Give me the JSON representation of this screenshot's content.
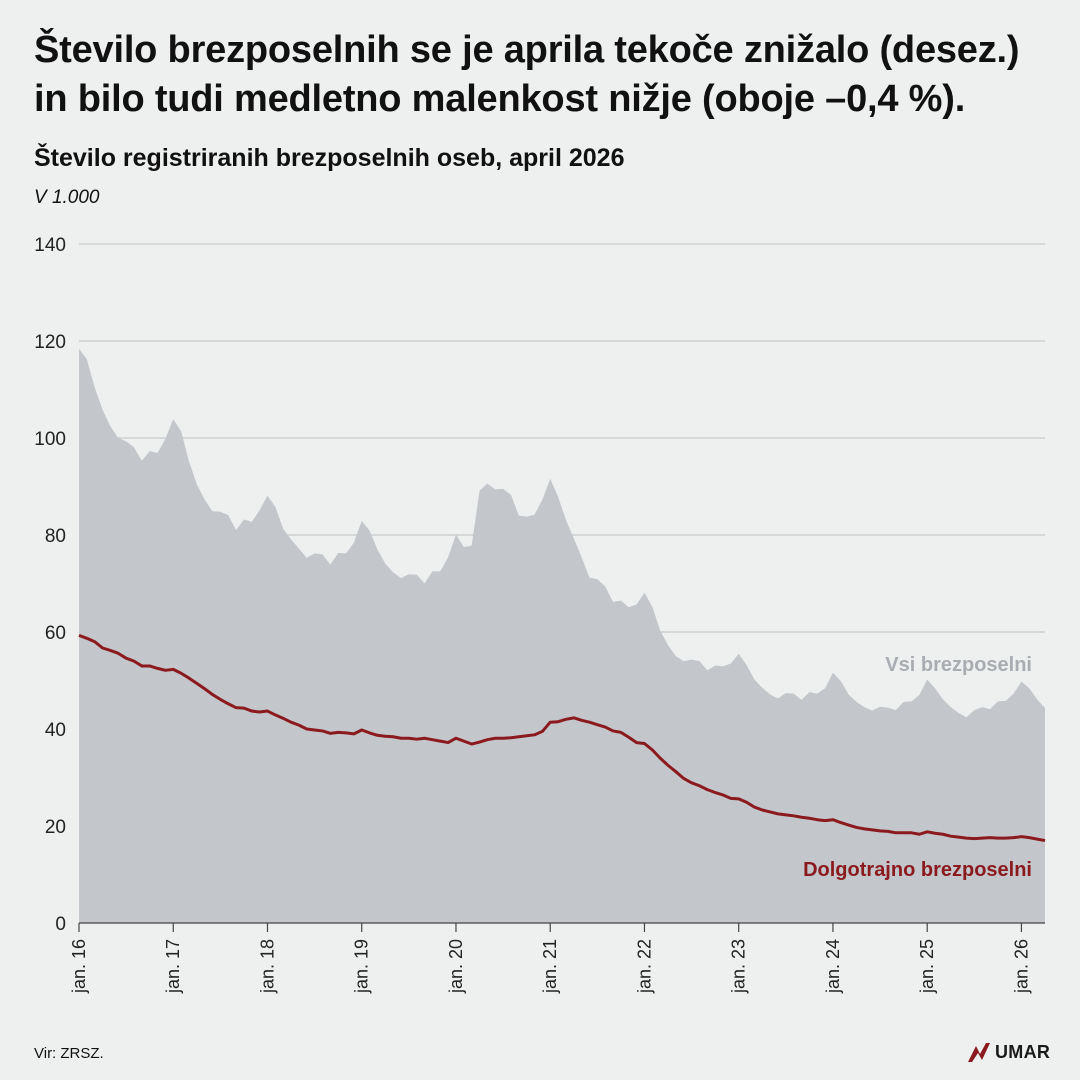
{
  "headline": {
    "line1": "Število brezposelnih se je aprila tekoče znižalo (desez.)",
    "line2": "in bilo tudi medletno malenkost nižje (oboje –0,4 %)."
  },
  "chart_data": {
    "type": "area",
    "title": "Število registriranih brezposelnih oseb, april 2026",
    "unit_label": "V 1.000",
    "ylim": [
      0,
      140
    ],
    "y_ticks": [
      0,
      20,
      40,
      60,
      80,
      100,
      120,
      140
    ],
    "x_tick_labels": [
      "jan. 16",
      "jan. 17",
      "jan. 18",
      "jan. 19",
      "jan. 20",
      "jan. 21",
      "jan. 22",
      "jan. 23",
      "jan. 24",
      "jan. 25",
      "jan. 26"
    ],
    "x_start": "2016-01",
    "x_end": "2026-04",
    "grid": true,
    "series": [
      {
        "name": "Vsi brezposelni",
        "kind": "area",
        "color": "#c3c6ca",
        "label_color": "#a9adb2",
        "values": [
          118.4,
          116.2,
          110.4,
          105.8,
          102.4,
          100.0,
          99.3,
          98.1,
          95.3,
          97.3,
          96.9,
          99.8,
          103.9,
          101.4,
          95.2,
          90.5,
          87.3,
          84.9,
          84.8,
          84.1,
          81.0,
          83.2,
          82.7,
          85.1,
          88.1,
          85.8,
          81.3,
          79.1,
          77.2,
          75.3,
          76.2,
          76.0,
          73.9,
          76.3,
          76.2,
          78.4,
          82.9,
          80.9,
          77.0,
          74.1,
          72.3,
          71.1,
          71.9,
          71.8,
          70.0,
          72.5,
          72.5,
          75.4,
          80.1,
          77.5,
          77.8,
          89.1,
          90.6,
          89.4,
          89.5,
          88.3,
          84.0,
          83.8,
          84.2,
          87.3,
          91.6,
          87.9,
          83.1,
          79.3,
          75.4,
          71.2,
          70.9,
          69.4,
          66.2,
          66.5,
          65.1,
          65.7,
          68.1,
          65.2,
          60.3,
          57.3,
          55.0,
          54.0,
          54.3,
          54.0,
          52.1,
          53.1,
          52.9,
          53.5,
          55.5,
          53.2,
          50.2,
          48.5,
          47.1,
          46.3,
          47.4,
          47.3,
          46.0,
          47.6,
          47.3,
          48.4,
          51.6,
          49.9,
          47.1,
          45.6,
          44.5,
          43.8,
          44.6,
          44.4,
          43.9,
          45.6,
          45.7,
          47.0,
          50.2,
          48.4,
          46.1,
          44.5,
          43.3,
          42.4,
          43.9,
          44.5,
          44.1,
          45.7,
          45.8,
          47.3,
          49.8,
          48.4,
          46.1,
          44.3
        ]
      },
      {
        "name": "Dolgotrajno brezposelni",
        "kind": "line",
        "color": "#8b1a1f",
        "values": [
          59.3,
          58.7,
          58.0,
          56.7,
          56.2,
          55.6,
          54.6,
          54.0,
          53.0,
          53.0,
          52.5,
          52.1,
          52.3,
          51.5,
          50.5,
          49.4,
          48.3,
          47.1,
          46.1,
          45.2,
          44.4,
          44.3,
          43.7,
          43.5,
          43.7,
          42.9,
          42.2,
          41.4,
          40.8,
          40.0,
          39.8,
          39.6,
          39.1,
          39.3,
          39.2,
          39.0,
          39.8,
          39.2,
          38.7,
          38.5,
          38.4,
          38.1,
          38.1,
          37.9,
          38.1,
          37.8,
          37.5,
          37.2,
          38.1,
          37.5,
          36.9,
          37.3,
          37.8,
          38.1,
          38.1,
          38.2,
          38.4,
          38.6,
          38.8,
          39.5,
          41.4,
          41.5,
          42.0,
          42.3,
          41.8,
          41.4,
          40.9,
          40.4,
          39.6,
          39.3,
          38.3,
          37.2,
          37.0,
          35.7,
          34.0,
          32.5,
          31.2,
          29.8,
          28.9,
          28.3,
          27.5,
          26.9,
          26.4,
          25.7,
          25.6,
          24.9,
          23.9,
          23.3,
          22.9,
          22.5,
          22.3,
          22.1,
          21.8,
          21.6,
          21.3,
          21.1,
          21.3,
          20.7,
          20.2,
          19.7,
          19.4,
          19.2,
          19.0,
          18.9,
          18.6,
          18.6,
          18.6,
          18.3,
          18.8,
          18.5,
          18.3,
          17.9,
          17.7,
          17.5,
          17.4,
          17.5,
          17.6,
          17.5,
          17.5,
          17.6,
          17.8,
          17.6,
          17.3,
          17.0
        ]
      }
    ]
  },
  "source": "Vir: ZRSZ.",
  "logo": {
    "text": "UMAR",
    "color": "#8b1a1f"
  }
}
